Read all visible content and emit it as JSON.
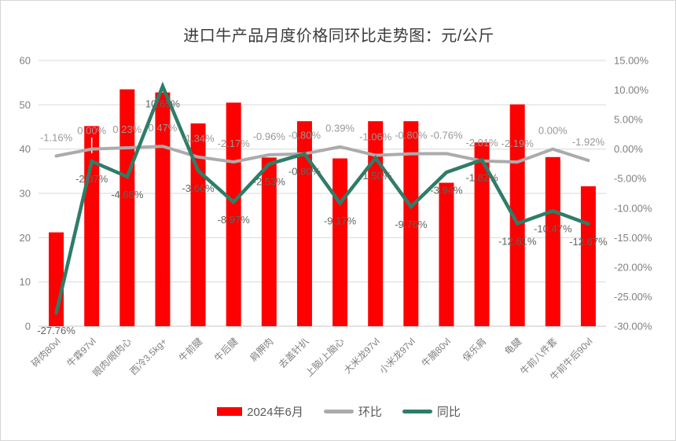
{
  "title": "进口牛产品月度价格同环比走势图：元/公斤",
  "legend": [
    {
      "label": "2024年6月",
      "type": "bar",
      "color": "#fe0000"
    },
    {
      "label": "环比",
      "type": "line",
      "color": "#ababab"
    },
    {
      "label": "同比",
      "type": "line",
      "color": "#2e7d68"
    }
  ],
  "chart_data": {
    "type": "combo-bar-line",
    "title": "进口牛产品月度价格同环比走势图：元/公斤",
    "unit": "元/公斤",
    "categories": [
      "碎肉80vl",
      "牛霖97vl",
      "眼肉/眼肉心",
      "西冷3.5kg+",
      "牛前腱",
      "牛后腱",
      "肩胛肉",
      "去盖针扒",
      "上脑/上脑心",
      "大米龙97vl",
      "小米龙97vl",
      "牛腩80vl",
      "保乐肩",
      "龟腱",
      "牛前八件套",
      "牛前牛后90vl"
    ],
    "series": [
      {
        "name": "2024年6月",
        "type": "bar",
        "axis": "left",
        "color": "#fe0000",
        "values": [
          21.2,
          45.2,
          53.5,
          52.8,
          45.8,
          50.5,
          38.1,
          46.3,
          37.9,
          46.3,
          46.3,
          32.4,
          41.5,
          50.1,
          38.2,
          31.6
        ]
      },
      {
        "name": "环比",
        "type": "line",
        "axis": "right",
        "color": "#ababab",
        "label_color": "#989898",
        "values": [
          -1.16,
          0.0,
          0.23,
          0.47,
          -1.34,
          -2.17,
          -0.96,
          -0.8,
          0.39,
          -1.06,
          -0.8,
          -0.76,
          -2.01,
          -2.19,
          0.0,
          -1.92
        ],
        "labels": [
          "-1.16%",
          "0.00%",
          "0.23%",
          "0.47%",
          "-1.34%",
          "-2.17%",
          "-0.96%",
          "-0.80%",
          "0.39%",
          "-1.06%",
          "-0.80%",
          "-0.76%",
          "-2.01%",
          "-2.19%",
          "0.00%",
          "-1.92%"
        ]
      },
      {
        "name": "同比",
        "type": "line",
        "axis": "right",
        "color": "#2e7d68",
        "label_color": "#5d6661",
        "values": [
          -27.76,
          -2.07,
          -4.68,
          10.65,
          -3.66,
          -8.97,
          -2.53,
          -0.8,
          -9.17,
          -1.5,
          -9.76,
          -3.94,
          -1.82,
          -12.61,
          -10.47,
          -12.67
        ],
        "labels": [
          "-27.76%",
          "-2.07%",
          "-4.68%",
          "10.65%",
          "-3.66%",
          "-8.97%",
          "-2.53%",
          "-0.80%",
          "-9.17%",
          "-1.50%",
          "-9.76%",
          "-3.94%",
          "-1.82%",
          "-12.61%",
          "-10.47%",
          "-12.67%"
        ]
      }
    ],
    "left_axis": {
      "min": 0,
      "max": 60,
      "ticks": [
        "0",
        "10",
        "20",
        "30",
        "40",
        "50",
        "60"
      ]
    },
    "right_axis": {
      "min": -30,
      "max": 15,
      "ticks_top_to_bottom": [
        "15.00%",
        "10.00%",
        "5.00%",
        "0.00%",
        "-5.00%",
        "-10.00%",
        "-15.00%",
        "-20.00%",
        "-25.00%",
        "-30.00%"
      ]
    },
    "grid": true,
    "legend_position": "bottom"
  },
  "colors": {
    "grid": "#d9d9d9",
    "axis_line": "#c6c6c6",
    "axis_text": "#7f7f7f",
    "background": "#ffffff"
  }
}
